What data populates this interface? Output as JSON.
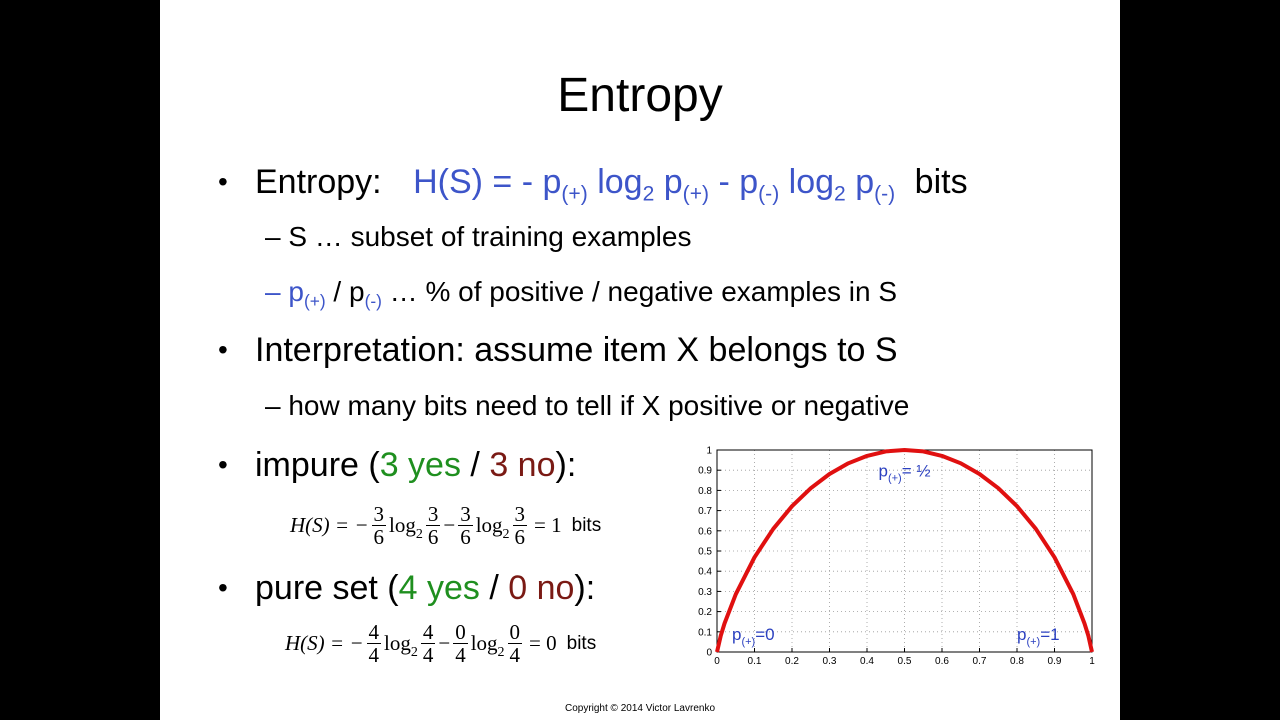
{
  "slide": {
    "title": "Entropy",
    "bullet1": {
      "lead": "Entropy:",
      "formula": {
        "p1": "H(S) = - p",
        "sub_pos_a": "(+)",
        "log_a": " log",
        "two_a": "2",
        "p2": " p",
        "sub_pos_b": "(+)",
        "minus": " - p",
        "sub_neg_a": "(-)",
        "log_b": " log",
        "two_b": "2",
        "p3": " p",
        "sub_neg_b": "(-)"
      },
      "unit": "bits",
      "sub1": "– S … subset of training examples",
      "sub2": {
        "dash": "– p",
        "sub_pos": "(+)",
        "slash": " / p",
        "sub_neg": "(-)",
        "rest": " … % of positive / negative examples in S"
      }
    },
    "bullet2": {
      "text": "Interpretation: assume item X belongs to S",
      "sub": "– how many bits need to tell if X positive or negative"
    },
    "bullet3": {
      "pre": "impure (",
      "yes": "3 yes",
      "slash": " / ",
      "no": "3 no",
      "post": "):",
      "equation": {
        "lhs": "H(S) = −",
        "f1": {
          "num": "3",
          "den": "6"
        },
        "log1": "log",
        "base": "2",
        "f2": {
          "num": "3",
          "den": "6"
        },
        "minus": "−",
        "f3": {
          "num": "3",
          "den": "6"
        },
        "log2": "log",
        "f4": {
          "num": "3",
          "den": "6"
        },
        "result": "= 1",
        "unit": "bits"
      }
    },
    "bullet4": {
      "pre": "pure set (",
      "yes": "4 yes",
      "slash": " / ",
      "no": "0 no",
      "post": "):",
      "equation": {
        "lhs": "H(S) = −",
        "f1": {
          "num": "4",
          "den": "4"
        },
        "log1": "log",
        "base": "2",
        "f2": {
          "num": "4",
          "den": "4"
        },
        "minus": "−",
        "f3": {
          "num": "0",
          "den": "4"
        },
        "log2": "log",
        "f4": {
          "num": "0",
          "den": "4"
        },
        "result": "= 0",
        "unit": "bits"
      }
    },
    "copyright": "Copyright © 2014 Victor Lavrenko"
  },
  "chart_data": {
    "type": "line",
    "x": [
      0,
      0.01,
      0.02,
      0.05,
      0.1,
      0.15,
      0.2,
      0.25,
      0.3,
      0.35,
      0.4,
      0.45,
      0.5,
      0.55,
      0.6,
      0.65,
      0.7,
      0.75,
      0.8,
      0.85,
      0.9,
      0.95,
      0.98,
      0.99,
      1
    ],
    "series": [
      {
        "values": [
          0,
          0.081,
          0.141,
          0.286,
          0.469,
          0.61,
          0.722,
          0.811,
          0.881,
          0.934,
          0.971,
          0.993,
          1,
          0.993,
          0.971,
          0.934,
          0.881,
          0.811,
          0.722,
          0.61,
          0.469,
          0.286,
          0.141,
          0.081,
          0
        ]
      }
    ],
    "xlim": [
      0,
      1
    ],
    "ylim": [
      0,
      1
    ],
    "xticks": [
      "0",
      "0.1",
      "0.2",
      "0.3",
      "0.4",
      "0.5",
      "0.6",
      "0.7",
      "0.8",
      "0.9",
      "1"
    ],
    "yticks": [
      "0",
      "0.1",
      "0.2",
      "0.3",
      "0.4",
      "0.5",
      "0.6",
      "0.7",
      "0.8",
      "0.9",
      "1"
    ],
    "grid": true,
    "line_color": "#e01010",
    "annotations": [
      {
        "x": 0.5,
        "y": 0.87,
        "p": "p",
        "sub": "(+)",
        "text": "= ½"
      },
      {
        "x": 0.04,
        "y": 0.06,
        "p": "p",
        "sub": "(+)",
        "text": "=0"
      },
      {
        "x": 0.8,
        "y": 0.06,
        "p": "p",
        "sub": "(+)",
        "text": "=1"
      }
    ]
  }
}
